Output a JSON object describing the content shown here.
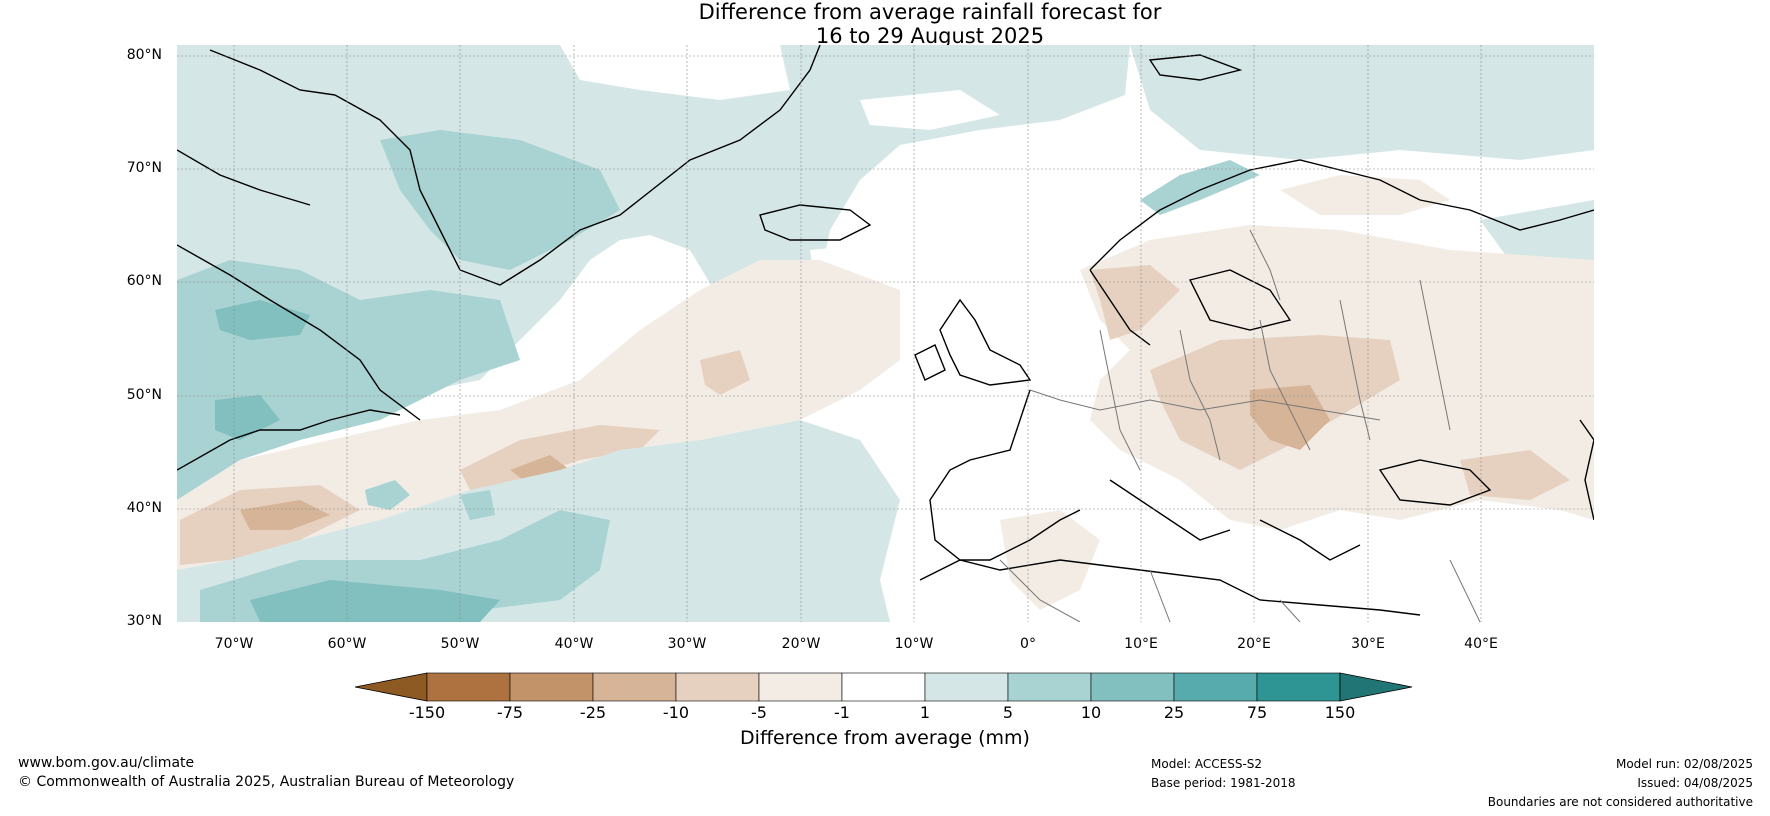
{
  "title": {
    "line1": "Difference from average rainfall forecast for",
    "line2": "16 to 29 August 2025"
  },
  "map": {
    "projection": "equirectangular",
    "lon_range": [
      -75,
      50
    ],
    "lat_range": [
      30,
      81
    ],
    "lat_labels": [
      "80°N",
      "70°N",
      "60°N",
      "50°N",
      "40°N",
      "30°N"
    ],
    "lon_labels": [
      "70°W",
      "60°W",
      "50°W",
      "40°W",
      "30°W",
      "20°W",
      "10°W",
      "0°",
      "10°E",
      "20°E",
      "30°E",
      "40°E"
    ],
    "regions_shown": [
      "Greenland",
      "North Atlantic",
      "Eastern Canada",
      "Europe",
      "North Africa"
    ]
  },
  "legend": {
    "title": "Difference from average (mm)",
    "ticks": [
      "-150",
      "-75",
      "-25",
      "-10",
      "-5",
      "-1",
      "1",
      "5",
      "10",
      "25",
      "75",
      "150"
    ],
    "colors": [
      "#8e5a23",
      "#ad723f",
      "#c29268",
      "#d6b497",
      "#e6d1c0",
      "#f3ece5",
      "#ffffff",
      "#d4e7e6",
      "#a9d2d2",
      "#82bfbf",
      "#57abad",
      "#2e9494",
      "#217575"
    ]
  },
  "footer": {
    "website": "www.bom.gov.au/climate",
    "copyright": "© Commonwealth of Australia 2025, Australian Bureau of Meteorology",
    "model": "Model: ACCESS-S2",
    "base_period": "Base period: 1981-2018",
    "model_run": "Model run: 02/08/2025",
    "issued": "Issued: 04/08/2025",
    "disclaimer": "Boundaries are not considered authoritative"
  }
}
